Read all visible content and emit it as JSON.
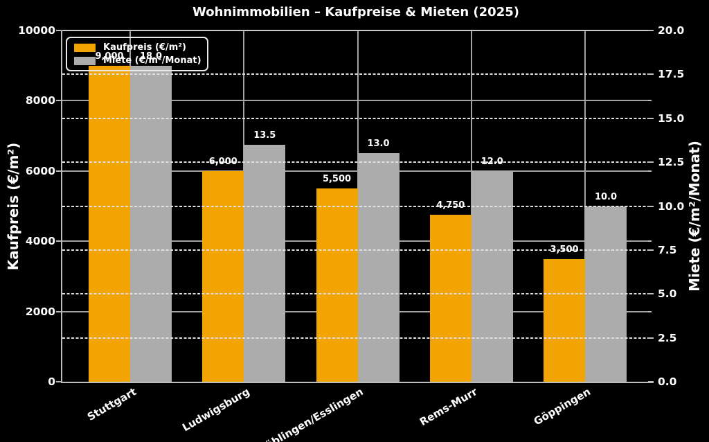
{
  "chart_data": {
    "type": "bar",
    "title": "Wohnimmobilien – Kaufpreise & Mieten (2025)",
    "categories": [
      "Stuttgart",
      "Ludwigsburg",
      "Böblingen/Esslingen",
      "Rems-Murr",
      "Göppingen"
    ],
    "series": [
      {
        "name": "Kaufpreis (€/m²)",
        "axis": "left",
        "color": "#F2A402",
        "values": [
          9000,
          6000,
          5500,
          4750,
          3500
        ],
        "value_labels": [
          "9,000",
          "6,000",
          "5,500",
          "4,750",
          "3,500"
        ]
      },
      {
        "name": "Miete (€/m²/Monat)",
        "axis": "right",
        "color": "#ACACAC",
        "values": [
          18.0,
          13.5,
          13.0,
          12.0,
          10.0
        ],
        "value_labels": [
          "18.0",
          "13.5",
          "13.0",
          "12.0",
          "10.0"
        ]
      }
    ],
    "left_axis": {
      "label": "Kaufpreis (€/m²)",
      "min": 0,
      "max": 10000,
      "tick_values": [
        0,
        2000,
        4000,
        6000,
        8000,
        10000
      ],
      "tick_labels": [
        "0",
        "2000",
        "4000",
        "6000",
        "8000",
        "10000"
      ]
    },
    "right_axis": {
      "label": "Miete (€/m²/Monat)",
      "min": 0,
      "max": 20,
      "tick_values": [
        0,
        2.5,
        5,
        7.5,
        10,
        12.5,
        15,
        17.5,
        20
      ],
      "tick_labels": [
        "0.0",
        "2.5",
        "5.0",
        "7.5",
        "10.0",
        "12.5",
        "15.0",
        "17.5",
        "20.0"
      ]
    },
    "legend_position": "upper-left",
    "grid": "both-axes, vertical at category centers",
    "colors": {
      "background": "#000000",
      "text": "#FFFFFF",
      "grid_solid": "#A4A4A4",
      "grid_dashed": "#E0E0E0",
      "spine": "#BDBDBD"
    }
  }
}
